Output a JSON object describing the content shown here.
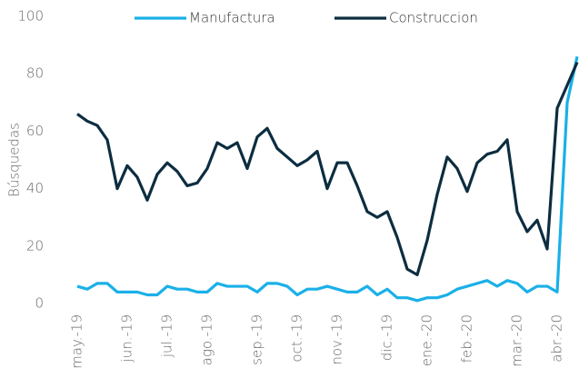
{
  "chart_data": {
    "type": "line",
    "y_label": "Búsquedas",
    "categories": [
      "may.-19",
      null,
      null,
      null,
      null,
      "jun.-19",
      null,
      null,
      null,
      "jul.-19",
      null,
      null,
      null,
      "ago.-19",
      null,
      null,
      null,
      null,
      "sep.-19",
      null,
      null,
      null,
      "oct.-19",
      null,
      null,
      null,
      "nov.-19",
      null,
      null,
      null,
      null,
      "dic.-19",
      null,
      null,
      null,
      "ene.-20",
      null,
      null,
      null,
      "feb.-20",
      null,
      null,
      null,
      null,
      "mar.-20",
      null,
      null,
      null,
      "abr.-20",
      null,
      null
    ],
    "series": [
      {
        "name": "Manufactura",
        "color": "#1ab0e8",
        "values": [
          6,
          5,
          7,
          7,
          4,
          4,
          4,
          3,
          3,
          6,
          5,
          5,
          4,
          4,
          7,
          6,
          6,
          6,
          4,
          7,
          7,
          6,
          3,
          5,
          5,
          6,
          5,
          4,
          4,
          6,
          3,
          5,
          2,
          2,
          1,
          2,
          2,
          3,
          5,
          6,
          7,
          8,
          6,
          8,
          7,
          4,
          6,
          6,
          4,
          70,
          86
        ]
      },
      {
        "name": "Construccion",
        "color": "#0d2d40",
        "values": [
          66,
          63.5,
          62,
          57,
          40,
          48,
          44,
          36,
          45,
          49,
          46,
          41,
          42,
          47,
          56,
          54,
          56,
          47,
          58,
          61,
          54,
          51,
          48,
          50,
          53,
          40,
          49,
          49,
          41,
          32,
          30,
          32,
          23,
          12,
          10,
          22,
          38,
          51,
          47,
          39,
          49,
          52,
          53,
          57,
          32,
          25,
          29,
          19,
          68,
          76,
          84
        ]
      }
    ],
    "ylim": [
      0,
      100
    ],
    "yticks": [
      0,
      20,
      40,
      60,
      80,
      100
    ],
    "grid": false
  }
}
